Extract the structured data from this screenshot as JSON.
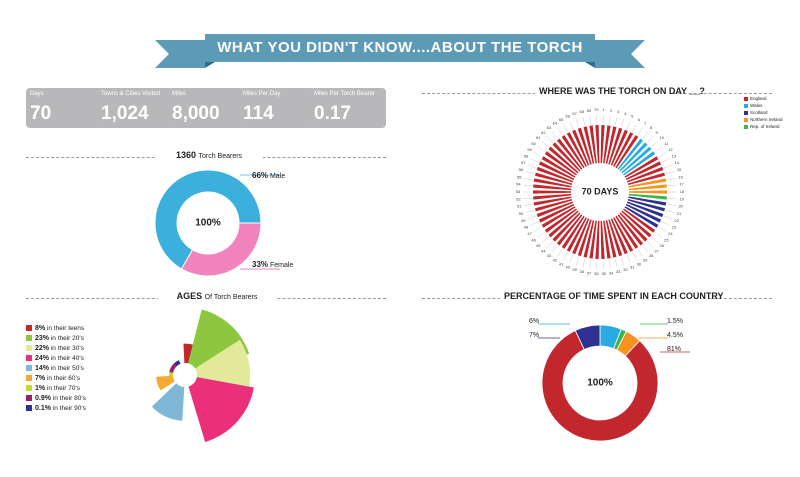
{
  "title": "WHAT YOU DIDN'T KNOW....ABOUT THE TORCH",
  "stats": [
    {
      "label": "Days",
      "value": "70"
    },
    {
      "label": "Towns & Cities Visited",
      "value": "1,024"
    },
    {
      "label": "Miles",
      "value": "8,000"
    },
    {
      "label": "Miles Per Day",
      "value": "114"
    },
    {
      "label": "Miles Per Torch Bearer",
      "value": "0.17"
    }
  ],
  "bearers": {
    "count": "1360",
    "heading_suffix": "Torch Bearers",
    "center": "100%",
    "male_pct": "66%",
    "male_label": "Male",
    "female_pct": "33%",
    "female_label": "Female"
  },
  "ages": {
    "heading": "AGES",
    "heading_suffix": "Of Torch Bearers",
    "items": [
      {
        "pct": "8%",
        "label": "in their teens",
        "color": "#c1272d"
      },
      {
        "pct": "23%",
        "label": "in their 20's",
        "color": "#8dc63f"
      },
      {
        "pct": "22%",
        "label": "in their 30's",
        "color": "#e3e99a"
      },
      {
        "pct": "24%",
        "label": "in their 40's",
        "color": "#ec2f7b"
      },
      {
        "pct": "14%",
        "label": "in their 50's",
        "color": "#7fb8d6"
      },
      {
        "pct": "7%",
        "label": "in their 60's",
        "color": "#f7a934"
      },
      {
        "pct": "1%",
        "label": "in their 70's",
        "color": "#c9d72a"
      },
      {
        "pct": "0.9%",
        "label": "in their 80's",
        "color": "#9e1f63"
      },
      {
        "pct": "0.1%",
        "label": "in their 90's",
        "color": "#2e3192"
      }
    ]
  },
  "torch_day": {
    "heading": "WHERE WAS THE TORCH ON DAY __?",
    "center": "70 DAYS",
    "legend": [
      {
        "label": "England",
        "color": "#c1272d"
      },
      {
        "label": "Wales",
        "color": "#29abe2"
      },
      {
        "label": "Scotland",
        "color": "#2e3192"
      },
      {
        "label": "Northern Ireland",
        "color": "#f7931e"
      },
      {
        "label": "Rep. of Ireland",
        "color": "#39b54a"
      }
    ],
    "day_labels": [
      "1",
      "2",
      "3",
      "4",
      "5",
      "6",
      "7",
      "8",
      "9",
      "10",
      "11",
      "12",
      "13",
      "14",
      "15",
      "16",
      "17",
      "18",
      "19",
      "20",
      "21",
      "22",
      "23",
      "24",
      "25",
      "26",
      "27",
      "28",
      "29",
      "30",
      "31",
      "32",
      "33",
      "34",
      "35",
      "36",
      "37",
      "38",
      "39",
      "40",
      "41",
      "42",
      "43",
      "44",
      "45",
      "46",
      "47",
      "48",
      "49",
      "50",
      "51",
      "52",
      "53",
      "54",
      "55",
      "56",
      "57",
      "58",
      "59",
      "60",
      "61",
      "62",
      "63",
      "64",
      "65",
      "66",
      "67",
      "68",
      "69",
      "70"
    ]
  },
  "country_time": {
    "heading": "PERCENTAGE OF TIME SPENT IN EACH COUNTRY",
    "center": "100%",
    "labels": {
      "wales": "6%",
      "scotland": "7%",
      "rep_ireland": "1.5%",
      "n_ireland": "4.5%",
      "england": "81%"
    }
  },
  "chart_data": [
    {
      "type": "pie",
      "title": "1360 Torch Bearers",
      "categories": [
        "Male",
        "Female"
      ],
      "values": [
        66,
        33
      ],
      "colors": [
        "#3bb0dc",
        "#f284bd"
      ]
    },
    {
      "type": "pie",
      "title": "AGES Of Torch Bearers",
      "categories": [
        "in their teens",
        "in their 20's",
        "in their 30's",
        "in their 40's",
        "in their 50's",
        "in their 60's",
        "in their 70's",
        "in their 80's",
        "in their 90's"
      ],
      "values": [
        8,
        23,
        22,
        24,
        14,
        7,
        1,
        0.9,
        0.1
      ],
      "colors": [
        "#c1272d",
        "#8dc63f",
        "#e3e99a",
        "#ec2f7b",
        "#7fb8d6",
        "#f7a934",
        "#c9d72a",
        "#9e1f63",
        "#2e3192"
      ]
    },
    {
      "type": "pie",
      "title": "WHERE WAS THE TORCH ON DAY __?",
      "categories": [
        "England",
        "Wales",
        "Scotland",
        "Northern Ireland",
        "Rep. of Ireland"
      ],
      "days": 70,
      "day_country": [
        "England",
        "England",
        "England",
        "England",
        "England",
        "England",
        "England",
        "Wales",
        "Wales",
        "Wales",
        "Wales",
        "England",
        "England",
        "England",
        "England",
        "Northern Ireland",
        "Northern Ireland",
        "Northern Ireland",
        "Rep. of Ireland",
        "Scotland",
        "Scotland",
        "Scotland",
        "Scotland",
        "Scotland",
        "England",
        "England",
        "England",
        "England",
        "England",
        "England",
        "England",
        "England",
        "England",
        "England",
        "England",
        "England",
        "England",
        "England",
        "England",
        "England",
        "England",
        "England",
        "England",
        "England",
        "England",
        "England",
        "England",
        "England",
        "England",
        "England",
        "England",
        "England",
        "England",
        "England",
        "England",
        "England",
        "England",
        "England",
        "England",
        "England",
        "England",
        "England",
        "England",
        "England",
        "England",
        "England",
        "England",
        "England",
        "England",
        "England"
      ],
      "colors": [
        "#c1272d",
        "#29abe2",
        "#2e3192",
        "#f7931e",
        "#39b54a"
      ]
    },
    {
      "type": "pie",
      "title": "PERCENTAGE OF TIME SPENT IN EACH COUNTRY",
      "categories": [
        "Wales",
        "Rep. of Ireland",
        "Northern Ireland",
        "England",
        "Scotland"
      ],
      "values": [
        6,
        1.5,
        4.5,
        81,
        7
      ],
      "colors": [
        "#29abe2",
        "#39b54a",
        "#f7931e",
        "#c1272d",
        "#2e3192"
      ]
    }
  ]
}
